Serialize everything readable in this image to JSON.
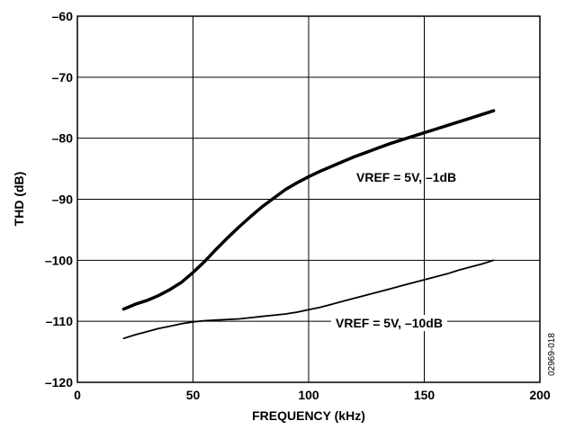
{
  "chart_data": {
    "type": "line",
    "xlabel": "FREQUENCY (kHz)",
    "ylabel": "THD (dB)",
    "xlim": [
      0,
      200
    ],
    "ylim": [
      -120,
      -60
    ],
    "x_ticks": [
      "0",
      "50",
      "100",
      "150",
      "200"
    ],
    "y_ticks": [
      "–60",
      "–70",
      "–80",
      "–90",
      "–100",
      "–110",
      "–120"
    ],
    "grid": true,
    "figure_id": "02969-018",
    "series": [
      {
        "name": "VREF = 5V, –1dB",
        "color": "#000000",
        "emphasis": "thick",
        "x": [
          20,
          25,
          30,
          35,
          40,
          45,
          50,
          55,
          60,
          65,
          70,
          75,
          80,
          85,
          90,
          95,
          100,
          105,
          110,
          115,
          120,
          125,
          130,
          135,
          140,
          145,
          150,
          155,
          160,
          165,
          170,
          175,
          180
        ],
        "y": [
          -108.0,
          -107.2,
          -106.6,
          -105.8,
          -104.8,
          -103.6,
          -102.0,
          -100.2,
          -98.2,
          -96.3,
          -94.5,
          -92.8,
          -91.2,
          -89.8,
          -88.4,
          -87.3,
          -86.3,
          -85.4,
          -84.6,
          -83.8,
          -83.0,
          -82.3,
          -81.6,
          -80.9,
          -80.3,
          -79.7,
          -79.1,
          -78.5,
          -77.9,
          -77.3,
          -76.7,
          -76.1,
          -75.5
        ]
      },
      {
        "name": "VREF = 5V, –10dB",
        "color": "#000000",
        "emphasis": "thin",
        "x": [
          20,
          25,
          30,
          35,
          40,
          45,
          50,
          55,
          60,
          65,
          70,
          75,
          80,
          85,
          90,
          95,
          100,
          105,
          110,
          115,
          120,
          125,
          130,
          135,
          140,
          145,
          150,
          155,
          160,
          165,
          170,
          175,
          180
        ],
        "y": [
          -112.8,
          -112.2,
          -111.7,
          -111.2,
          -110.8,
          -110.4,
          -110.1,
          -109.9,
          -109.8,
          -109.7,
          -109.6,
          -109.4,
          -109.2,
          -109.0,
          -108.8,
          -108.5,
          -108.1,
          -107.7,
          -107.2,
          -106.7,
          -106.2,
          -105.7,
          -105.2,
          -104.7,
          -104.2,
          -103.7,
          -103.2,
          -102.7,
          -102.2,
          -101.6,
          -101.1,
          -100.6,
          -100.0
        ]
      }
    ]
  }
}
